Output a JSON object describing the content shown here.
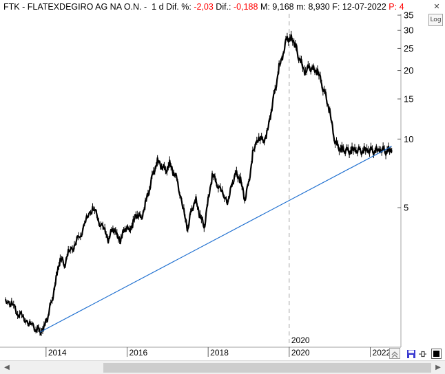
{
  "header": {
    "ticker": "FTK",
    "separator": "-",
    "name": "FLATEXDEGIRO AG NA O.N.",
    "separator2": "-",
    "period": "1 d",
    "dif_pct_label": "Dif. %:",
    "dif_pct_value": "-2,03",
    "dif_label": "Dif.:",
    "dif_value": "-0,188",
    "max_label": "M:",
    "max_value": "9,168",
    "min_label": "m:",
    "min_value": "8,930",
    "date_label": "F:",
    "date_value": "12-07-2022",
    "p_label": "P:",
    "p_value": "4"
  },
  "controls": {
    "log_label": "Log",
    "close_symbol": "✕"
  },
  "colors": {
    "negative": "#ff0000",
    "price": "#000000",
    "trendline": "#1e6fd0",
    "grid": "#c0c0c0",
    "scroll_thumb": "#cdcdcd"
  },
  "chart_data": {
    "type": "line",
    "scale": "log",
    "ylim": [
      1.22,
      35.5
    ],
    "xlim": [
      2013.0,
      2022.62
    ],
    "y_ticks": [
      35,
      30,
      25,
      20,
      15,
      10,
      5
    ],
    "x_ticks": [
      {
        "value": 2014,
        "label": "2014"
      },
      {
        "value": 2016,
        "label": "2016"
      },
      {
        "value": 2018,
        "label": "2018"
      },
      {
        "value": 2020,
        "label": "2020"
      },
      {
        "value": 2022,
        "label": "2022"
      }
    ],
    "crosshair": {
      "x": 2020.0,
      "label": "2020"
    },
    "series": [
      {
        "x": [
          2013.0,
          2013.15,
          2013.3,
          2013.45,
          2013.6,
          2013.75,
          2013.85,
          2013.95,
          2014.05,
          2014.15,
          2014.25,
          2014.35,
          2014.45,
          2014.55,
          2014.7,
          2014.85,
          2015.0,
          2015.15,
          2015.3,
          2015.45,
          2015.55,
          2015.65,
          2015.75,
          2015.85,
          2015.95,
          2016.05,
          2016.15,
          2016.25,
          2016.35,
          2016.45,
          2016.55,
          2016.65,
          2016.75,
          2016.85,
          2016.95,
          2017.05,
          2017.15,
          2017.25,
          2017.4,
          2017.5,
          2017.6,
          2017.7,
          2017.8,
          2017.9,
          2018.0,
          2018.1,
          2018.2,
          2018.35,
          2018.5,
          2018.6,
          2018.7,
          2018.8,
          2018.9,
          2019.0,
          2019.1,
          2019.25,
          2019.35,
          2019.45,
          2019.55,
          2019.65,
          2019.75,
          2019.85,
          2019.95,
          2020.05,
          2020.15,
          2020.2,
          2020.3,
          2020.4,
          2020.5,
          2020.6,
          2020.7,
          2020.8,
          2020.9,
          2021.0,
          2021.1,
          2021.2,
          2021.3,
          2021.35,
          2021.45,
          2021.55,
          2021.65,
          2021.75,
          2021.85,
          2021.95,
          2022.05,
          2022.15,
          2022.25,
          2022.35,
          2022.45,
          2022.53
        ],
        "values": [
          1.98,
          1.9,
          1.72,
          1.65,
          1.55,
          1.47,
          1.44,
          1.49,
          1.68,
          1.98,
          2.45,
          3.0,
          2.8,
          3.2,
          3.4,
          3.8,
          4.5,
          5.0,
          4.4,
          4.0,
          3.6,
          4.1,
          3.8,
          3.6,
          4.1,
          4.0,
          4.3,
          4.7,
          4.5,
          5.2,
          6.0,
          7.2,
          8.0,
          7.6,
          7.3,
          7.8,
          7.1,
          6.5,
          4.8,
          4.0,
          5.0,
          5.4,
          4.6,
          4.1,
          5.4,
          6.9,
          6.5,
          5.8,
          5.3,
          6.5,
          7.1,
          6.6,
          5.4,
          6.4,
          8.6,
          10.2,
          9.8,
          10.5,
          13.0,
          16.4,
          20.6,
          23.5,
          28.0,
          27.5,
          26.0,
          24.0,
          21.5,
          19.5,
          20.8,
          20.2,
          19.8,
          17.5,
          15.5,
          13.2,
          10.2,
          9.2,
          9.05,
          8.9,
          8.9,
          8.9,
          8.9,
          8.9,
          8.9,
          8.9,
          8.9,
          8.9,
          8.9,
          8.9,
          8.9,
          8.93
        ],
        "_note": ""
      }
    ],
    "trendline": {
      "x": [
        2013.85,
        2022.53
      ],
      "values": [
        1.42,
        9.3
      ]
    },
    "grid": false,
    "title": "",
    "xlabel": "",
    "ylabel": ""
  }
}
